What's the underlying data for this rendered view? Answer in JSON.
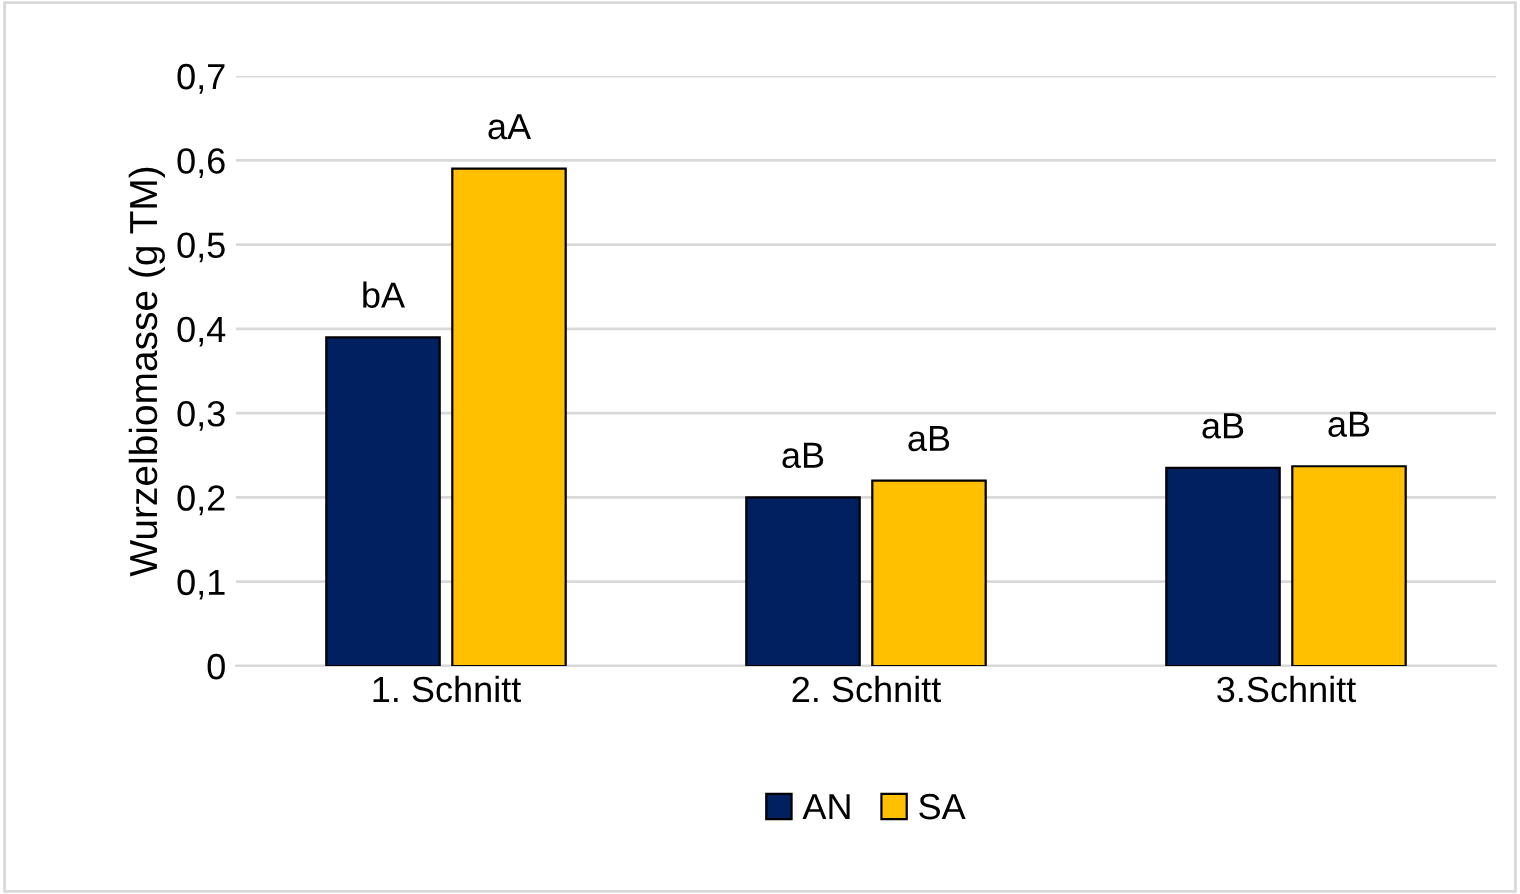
{
  "chart_data": {
    "type": "bar",
    "ylabel": "Wurzelbiomasse (g TM)",
    "categories": [
      "1. Schnitt",
      "2. Schnitt",
      "3.Schnitt"
    ],
    "series": [
      {
        "name": "AN",
        "color": "#002060",
        "values": [
          0.39,
          0.2,
          0.235
        ],
        "value_labels": [
          "bA",
          "aB",
          "aB"
        ]
      },
      {
        "name": "SA",
        "color": "#ffc000",
        "values": [
          0.59,
          0.22,
          0.237
        ],
        "value_labels": [
          "aA",
          "aB",
          "aB"
        ]
      }
    ],
    "ylim": [
      0,
      0.7
    ],
    "yticks": [
      {
        "value": 0,
        "label": "0"
      },
      {
        "value": 0.1,
        "label": "0,1"
      },
      {
        "value": 0.2,
        "label": "0,2"
      },
      {
        "value": 0.3,
        "label": "0,3"
      },
      {
        "value": 0.4,
        "label": "0,4"
      },
      {
        "value": 0.5,
        "label": "0,5"
      },
      {
        "value": 0.6,
        "label": "0,6"
      },
      {
        "value": 0.7,
        "label": "0,7"
      }
    ],
    "grid": "y",
    "legend": "bottom"
  }
}
